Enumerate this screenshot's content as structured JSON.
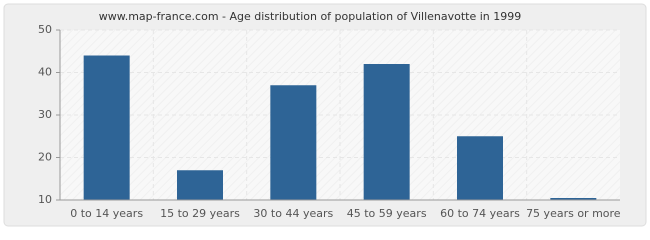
{
  "chart_data": {
    "type": "bar",
    "title": "www.map-france.com - Age distribution of population of Villenavotte in 1999",
    "categories": [
      "0 to 14 years",
      "15 to 29 years",
      "30 to 44 years",
      "45 to 59 years",
      "60 to 74 years",
      "75 years or more"
    ],
    "values": [
      44,
      17,
      37,
      42,
      25,
      10
    ],
    "color": "#2e6496",
    "ylim": [
      10,
      50
    ],
    "yticks": [
      10,
      20,
      30,
      40,
      50
    ],
    "grid": true
  }
}
